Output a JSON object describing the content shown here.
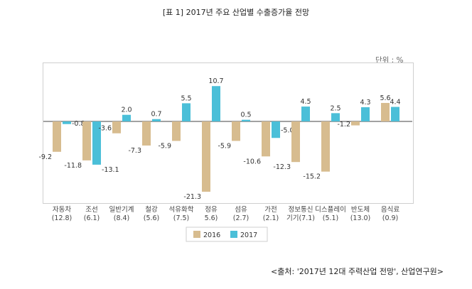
{
  "chart_data": {
    "type": "bar",
    "title": "[표 1] 2017년 주요 산업별 수출증가율 전망",
    "unit_label": "단위 : %",
    "categories": [
      "자동차",
      "조선",
      "일반기계",
      "철강",
      "석유화학",
      "정유",
      "섬유",
      "가전",
      "정보통신기기",
      "디스플레이",
      "반도체",
      "음식료"
    ],
    "category_lines": [
      [
        "자동차",
        "(12.8)"
      ],
      [
        "조선",
        "(6.1)"
      ],
      [
        "일반기계",
        "(8.4)"
      ],
      [
        "철강",
        "(5.6)"
      ],
      [
        "석유화학",
        "(7.5)"
      ],
      [
        "정유",
        "5.6)"
      ],
      [
        "섬유",
        "(2.7)"
      ],
      [
        "가전",
        "(2.1)"
      ],
      [
        "정보통신",
        "기기(7.1)"
      ],
      [
        "디스플레이",
        "(5.1)"
      ],
      [
        "반도체",
        "(13.0)"
      ],
      [
        "음식료",
        "(0.9)"
      ]
    ],
    "series": [
      {
        "name": "2016",
        "color": "#d7bc8f",
        "values": [
          -9.2,
          -11.8,
          -3.6,
          -7.3,
          -5.9,
          -21.3,
          -5.9,
          -10.6,
          -12.3,
          -15.2,
          -1.2,
          5.6
        ],
        "labels": [
          "-9.2",
          "-11.8",
          "-3.6",
          "-7.3",
          "-5.9",
          "-21.3",
          "-5.9",
          "-10.6",
          "-12.3",
          "-15.2",
          "-1.2",
          "5.6"
        ]
      },
      {
        "name": "2017",
        "color": "#4bbfd8",
        "values": [
          -0.8,
          -13.1,
          2.0,
          0.7,
          5.5,
          10.7,
          0.5,
          -5.0,
          4.5,
          2.5,
          4.3,
          4.4
        ],
        "labels": [
          "-0.8",
          "-13.1",
          "2.0",
          "0.7",
          "5.5",
          "10.7",
          "0.5",
          "-5.0",
          "4.5",
          "2.5",
          "4.3",
          "4.4"
        ]
      }
    ],
    "ylim": [
      -23,
      14
    ],
    "grid": false,
    "legend_position": "bottom-center"
  },
  "source": "<출처: '2017년 12대 주력산업 전망', 산업연구원>"
}
